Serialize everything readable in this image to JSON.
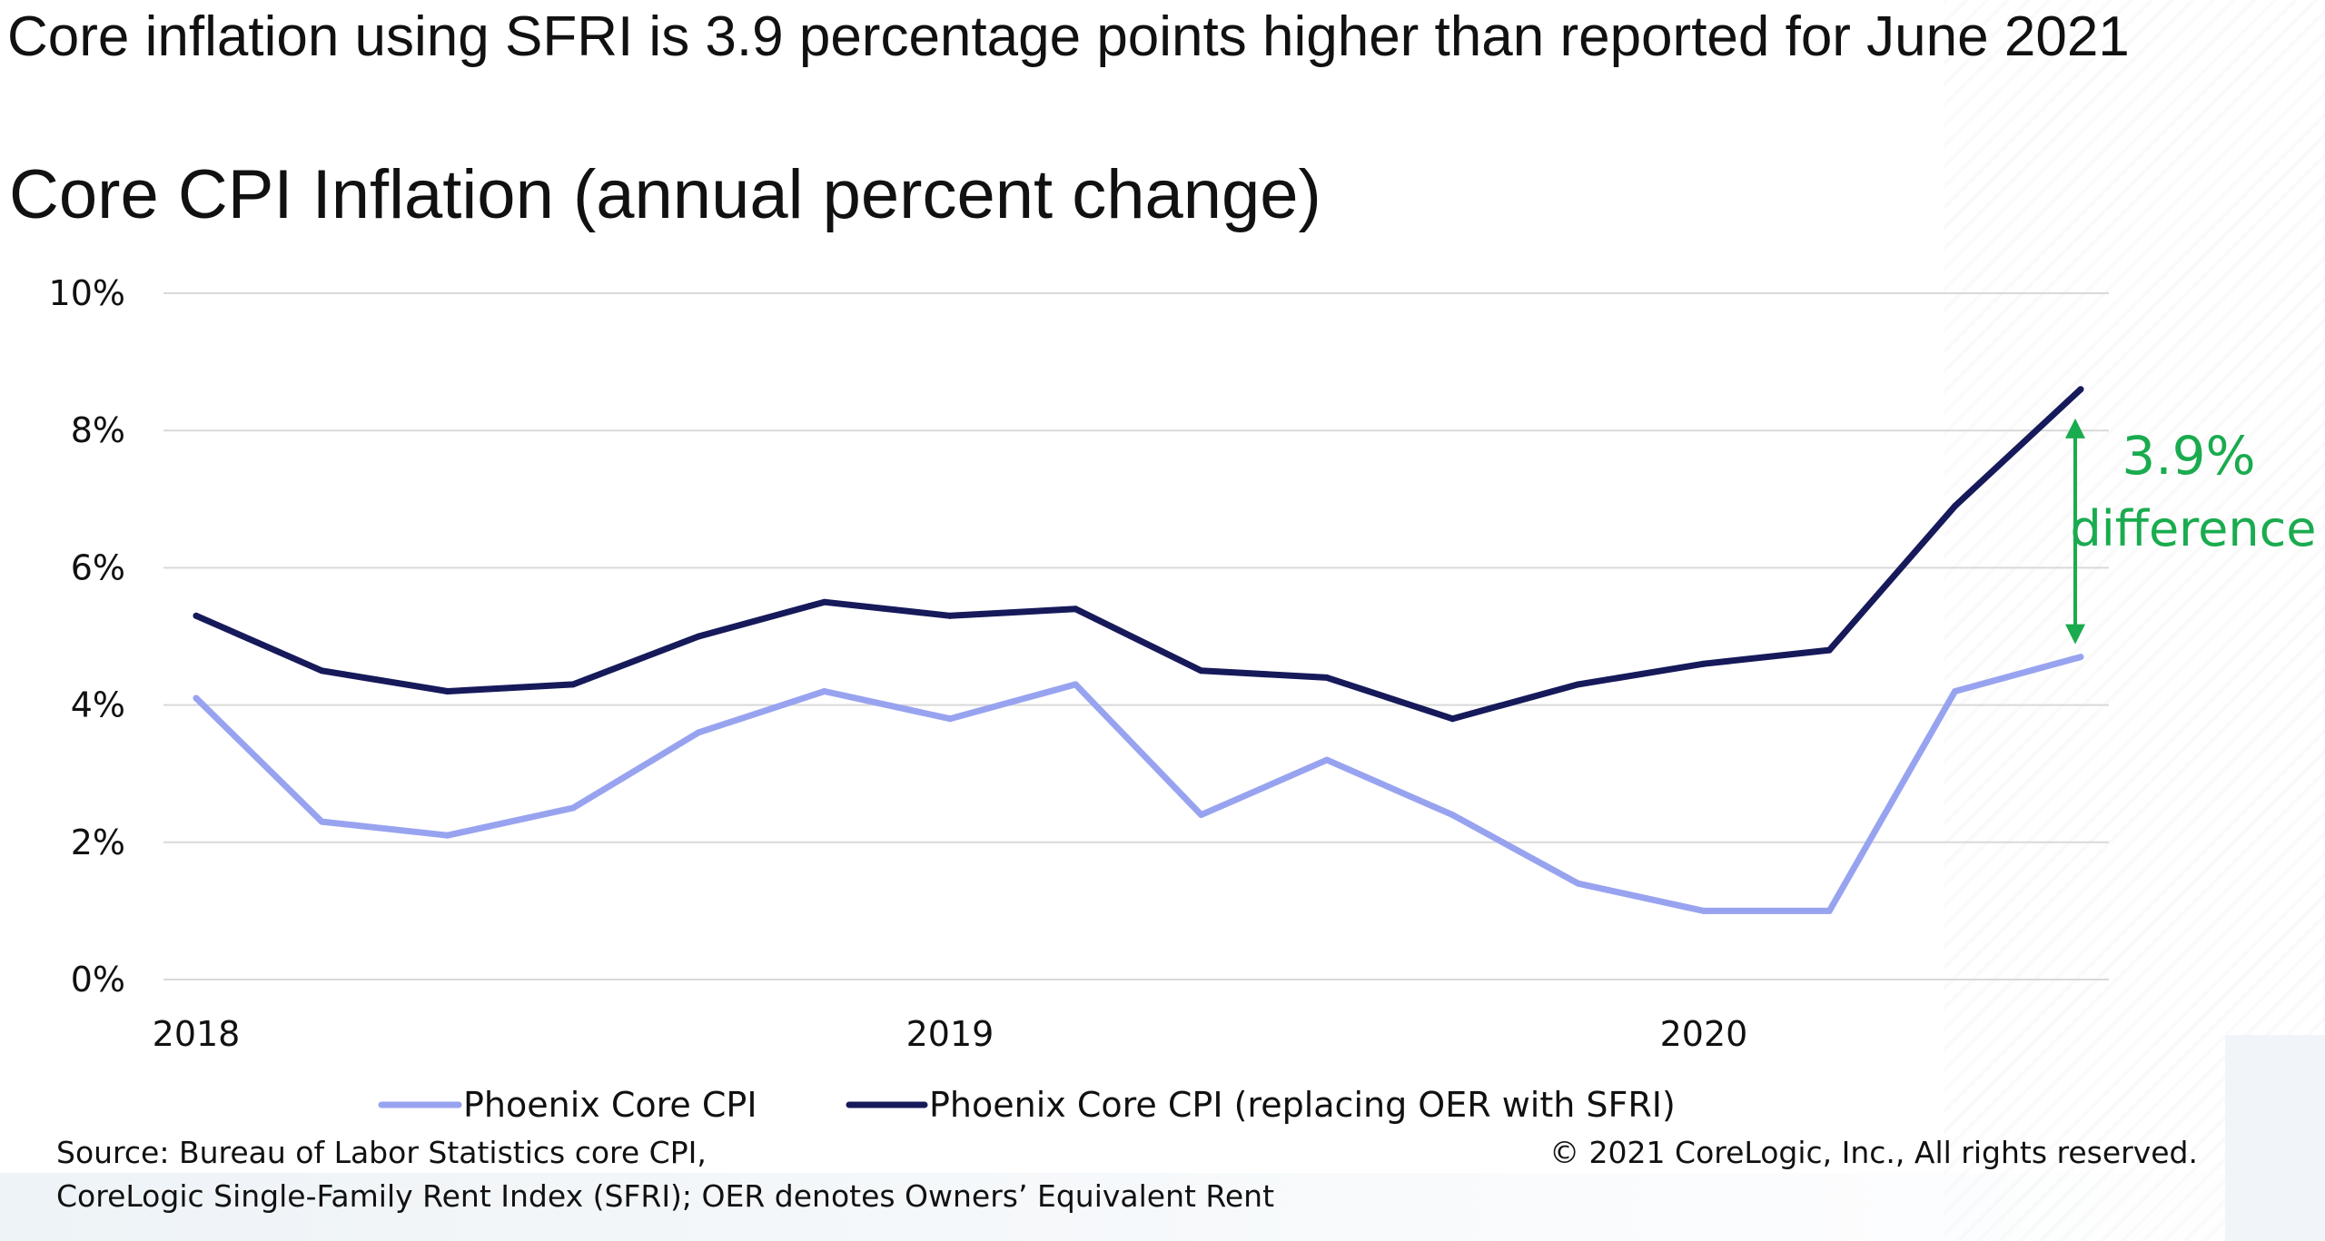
{
  "headline": "Core inflation using SFRI is 3.9 percentage points higher than reported for June 2021",
  "chart_data": {
    "type": "line",
    "title": "Core CPI Inflation (annual percent change)",
    "xlabel": "",
    "ylabel": "",
    "x_tick_labels": [
      "2018",
      "2019",
      "2020"
    ],
    "y_tick_labels": [
      "0%",
      "2%",
      "4%",
      "6%",
      "8%",
      "10%"
    ],
    "ylim": [
      0,
      10
    ],
    "grid": "horizontal",
    "legend_position": "bottom",
    "series": [
      {
        "name": "Phoenix Core CPI",
        "color": "#98a3f0",
        "values": [
          4.1,
          2.3,
          2.1,
          2.5,
          3.6,
          4.2,
          3.8,
          4.3,
          2.4,
          3.2,
          2.4,
          1.4,
          1.0,
          1.0,
          4.2,
          4.7
        ]
      },
      {
        "name": "Phoenix Core CPI (replacing OER with SFRI)",
        "color": "#161a5a",
        "values": [
          5.3,
          4.5,
          4.2,
          4.3,
          5.0,
          5.5,
          5.3,
          5.4,
          4.5,
          4.4,
          3.8,
          4.3,
          4.6,
          4.8,
          6.9,
          8.6
        ]
      }
    ],
    "annotation": {
      "value_label": "3.9%",
      "text_label": "difference",
      "color": "#1aab4f"
    }
  },
  "footer": {
    "source_line1": "Source: Bureau of Labor Statistics core CPI,",
    "source_line2": "CoreLogic Single-Family Rent Index (SFRI); OER denotes Owners’ Equivalent Rent",
    "copyright": "© 2021 CoreLogic, Inc., All rights reserved."
  }
}
